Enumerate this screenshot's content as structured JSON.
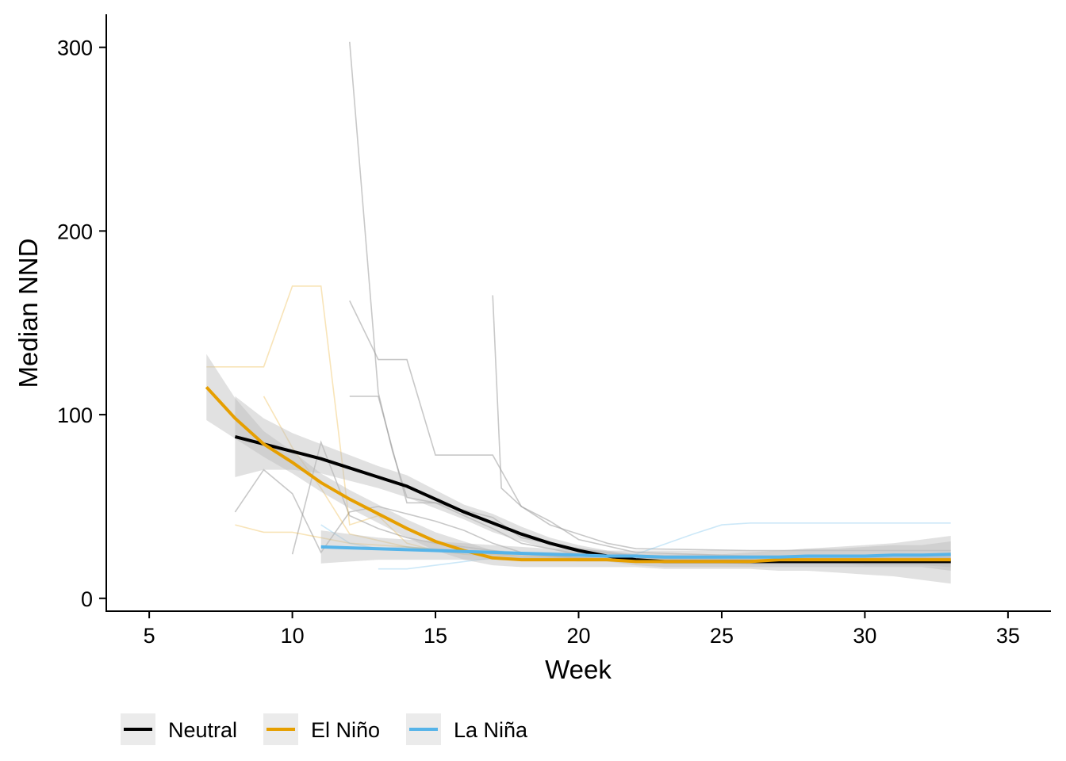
{
  "chart_data": {
    "type": "line",
    "xlabel": "Week",
    "ylabel": "Median NND",
    "xlim": [
      3.5,
      36.5
    ],
    "ylim": [
      -7,
      318
    ],
    "x_ticks": [
      5,
      10,
      15,
      20,
      25,
      30,
      35
    ],
    "y_ticks": [
      0,
      100,
      200,
      300
    ],
    "grid": false,
    "legend_position": "bottom-left",
    "colors": {
      "Neutral": "#000000",
      "El Niño": "#E69F00",
      "La Niña": "#56B4E9",
      "raw_neutral": "#9a9a9a",
      "ribbon": "#bdbdbd"
    },
    "legend": [
      {
        "name": "Neutral",
        "color": "#000000"
      },
      {
        "name": "El Niño",
        "color": "#E69F00"
      },
      {
        "name": "La Niña",
        "color": "#56B4E9"
      }
    ],
    "raw_series": [
      {
        "group": "Neutral",
        "x": [
          12,
          13,
          13.5,
          14,
          15,
          16,
          17,
          18,
          19,
          20,
          22,
          26,
          33
        ],
        "y": [
          303,
          112,
          80,
          55,
          52,
          45,
          38,
          30,
          27,
          24,
          22,
          21,
          21
        ]
      },
      {
        "group": "Neutral",
        "x": [
          12,
          13,
          14,
          15,
          16,
          17,
          18,
          19,
          20,
          22,
          26,
          33
        ],
        "y": [
          162,
          130,
          130,
          78,
          78,
          78,
          50,
          42,
          32,
          25,
          23,
          23
        ]
      },
      {
        "group": "Neutral",
        "x": [
          12,
          13,
          14,
          15,
          16,
          17,
          18,
          20,
          22,
          26,
          33
        ],
        "y": [
          110,
          110,
          52,
          52,
          48,
          44,
          33,
          27,
          23,
          22,
          22
        ]
      },
      {
        "group": "Neutral",
        "x": [
          17,
          17.3,
          18,
          19,
          20,
          21,
          22,
          26,
          33
        ],
        "y": [
          165,
          60,
          50,
          40,
          35,
          30,
          27,
          26,
          26
        ]
      },
      {
        "group": "Neutral",
        "x": [
          8,
          9,
          10,
          11,
          12,
          13,
          14,
          15,
          16,
          17,
          18,
          20,
          22,
          26,
          33
        ],
        "y": [
          47,
          70,
          57,
          25,
          47,
          50,
          46,
          42,
          37,
          30,
          25,
          22,
          20,
          20,
          20
        ]
      },
      {
        "group": "Neutral",
        "x": [
          10,
          11,
          12,
          13,
          14,
          15,
          16,
          17,
          18,
          20,
          22,
          26,
          33
        ],
        "y": [
          24,
          85,
          45,
          38,
          33,
          30,
          28,
          26,
          24,
          22,
          21,
          19,
          19
        ]
      },
      {
        "group": "El Niño",
        "x": [
          7,
          9,
          10,
          11,
          12,
          13,
          14,
          15,
          16,
          17,
          18,
          20,
          26,
          33
        ],
        "y": [
          126,
          126,
          170,
          170,
          40,
          45,
          30,
          26,
          24,
          23,
          22,
          21,
          21,
          21
        ]
      },
      {
        "group": "El Niño",
        "x": [
          9,
          10,
          11,
          12,
          14,
          16,
          18,
          20,
          26,
          33
        ],
        "y": [
          110,
          82,
          60,
          35,
          28,
          25,
          23,
          22,
          20,
          20
        ]
      },
      {
        "group": "El Niño",
        "x": [
          8,
          9,
          10,
          11,
          12,
          14,
          16,
          18,
          20,
          26,
          33
        ],
        "y": [
          40,
          36,
          36,
          33,
          30,
          28,
          25,
          23,
          22,
          20,
          20
        ]
      },
      {
        "group": "La Niña",
        "x": [
          11,
          12,
          13,
          14,
          15,
          16,
          17,
          18,
          19,
          20,
          22,
          24,
          25,
          26,
          33
        ],
        "y": [
          40,
          30,
          27,
          28,
          27,
          26,
          26,
          25,
          25,
          24,
          24,
          35,
          40,
          41,
          41
        ]
      },
      {
        "group": "La Niña",
        "x": [
          13,
          14,
          15,
          16,
          17,
          18,
          19,
          20,
          22,
          26,
          33
        ],
        "y": [
          16,
          16,
          18,
          20,
          22,
          22,
          22,
          22,
          22,
          22,
          22
        ]
      }
    ],
    "series": [
      {
        "name": "Neutral",
        "color": "#000000",
        "x": [
          8,
          9,
          10,
          11,
          12,
          13,
          14,
          15,
          16,
          17,
          18,
          19,
          20,
          21,
          22,
          23,
          24,
          25,
          26,
          27,
          28,
          29,
          30,
          31,
          32,
          33
        ],
        "y": [
          88,
          84,
          80,
          76,
          71,
          66,
          61,
          54,
          47,
          41,
          35,
          30,
          26,
          23,
          21,
          20,
          20,
          20,
          20,
          20,
          20,
          20,
          20,
          20,
          20,
          20
        ],
        "ymin": [
          66,
          70,
          70,
          68,
          64,
          60,
          55,
          49,
          43,
          36,
          31,
          27,
          23,
          20,
          18,
          17,
          17,
          17,
          17,
          17,
          17,
          17,
          17,
          17,
          17,
          15
        ],
        "ymax": [
          110,
          98,
          90,
          84,
          78,
          72,
          67,
          59,
          51,
          46,
          39,
          33,
          29,
          26,
          24,
          23,
          23,
          23,
          23,
          23,
          23,
          23,
          23,
          23,
          23,
          25
        ]
      },
      {
        "name": "El Niño",
        "color": "#E69F00",
        "x": [
          7,
          8,
          9,
          10,
          11,
          12,
          13,
          14,
          15,
          16,
          17,
          18,
          19,
          20,
          21,
          22,
          23,
          24,
          25,
          26,
          27,
          28,
          29,
          30,
          31,
          32,
          33
        ],
        "y": [
          115,
          98,
          84,
          74,
          63,
          54,
          46,
          38,
          31,
          26,
          22,
          21,
          21,
          21,
          21,
          20,
          20,
          20,
          20,
          20,
          21,
          21,
          21,
          21,
          21,
          21,
          21
        ],
        "ymin": [
          97,
          87,
          77,
          68,
          58,
          49,
          41,
          33,
          26,
          21,
          18,
          17,
          17,
          17,
          17,
          17,
          16,
          16,
          16,
          16,
          15,
          15,
          14,
          13,
          12,
          10,
          8
        ],
        "ymax": [
          133,
          109,
          91,
          80,
          68,
          59,
          51,
          43,
          36,
          31,
          26,
          25,
          25,
          25,
          25,
          24,
          24,
          24,
          24,
          25,
          26,
          27,
          28,
          29,
          30,
          32,
          34
        ]
      },
      {
        "name": "La Niña",
        "color": "#56B4E9",
        "x": [
          11,
          12,
          13,
          14,
          15,
          16,
          17,
          18,
          19,
          20,
          21,
          22,
          23,
          24,
          25,
          26,
          27,
          28,
          29,
          30,
          31,
          32,
          33
        ],
        "y": [
          28,
          27.5,
          27,
          26.5,
          26,
          25.5,
          25,
          24.5,
          24,
          23.5,
          23,
          23,
          22.5,
          22.5,
          22.5,
          22.5,
          22.5,
          23,
          23,
          23,
          23.5,
          23.5,
          24
        ],
        "ymin": [
          19,
          20,
          21,
          21,
          21,
          21,
          21,
          21,
          21,
          20,
          20,
          20,
          19,
          19,
          19,
          19,
          19,
          19,
          19,
          18,
          18,
          18,
          17
        ],
        "ymax": [
          37,
          35,
          33,
          32,
          31,
          30,
          29,
          28,
          27,
          27,
          26,
          26,
          26,
          26,
          26,
          26,
          26,
          27,
          27,
          28,
          29,
          29,
          31
        ]
      }
    ]
  }
}
